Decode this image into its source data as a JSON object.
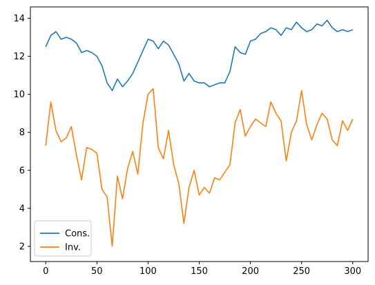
{
  "chart_data": {
    "type": "line",
    "title": "",
    "xlabel": "",
    "ylabel": "",
    "xlim": [
      -15,
      315
    ],
    "ylim": [
      1.2,
      14.6
    ],
    "xticks": [
      0,
      50,
      100,
      150,
      200,
      250,
      300
    ],
    "yticks": [
      2,
      4,
      6,
      8,
      10,
      12,
      14
    ],
    "grid": false,
    "legend_position": "lower-left",
    "series": [
      {
        "name": "Cons.",
        "color": "#1f77b4",
        "x": [
          0,
          5,
          10,
          15,
          20,
          25,
          30,
          35,
          40,
          45,
          50,
          55,
          60,
          65,
          70,
          75,
          80,
          85,
          90,
          95,
          100,
          105,
          110,
          115,
          120,
          125,
          130,
          135,
          140,
          145,
          150,
          155,
          160,
          165,
          170,
          175,
          180,
          185,
          190,
          195,
          200,
          205,
          210,
          215,
          220,
          225,
          230,
          235,
          240,
          245,
          250,
          255,
          260,
          265,
          270,
          275,
          280,
          285,
          290,
          295,
          300
        ],
        "values": [
          12.5,
          13.1,
          13.3,
          12.9,
          13.0,
          12.9,
          12.7,
          12.2,
          12.3,
          12.2,
          12.0,
          11.5,
          10.6,
          10.2,
          10.8,
          10.4,
          10.7,
          11.1,
          11.7,
          12.3,
          12.9,
          12.8,
          12.4,
          12.8,
          12.6,
          12.1,
          11.6,
          10.7,
          11.1,
          10.7,
          10.6,
          10.6,
          10.4,
          10.5,
          10.6,
          10.6,
          11.2,
          12.5,
          12.2,
          12.1,
          12.8,
          12.9,
          13.2,
          13.3,
          13.5,
          13.4,
          13.1,
          13.5,
          13.4,
          13.8,
          13.5,
          13.3,
          13.4,
          13.7,
          13.6,
          13.9,
          13.5,
          13.3,
          13.4,
          13.3,
          13.4
        ]
      },
      {
        "name": "Inv.",
        "color": "#ff7f0e",
        "x": [
          0,
          5,
          10,
          15,
          20,
          25,
          30,
          35,
          40,
          45,
          50,
          55,
          60,
          65,
          70,
          75,
          80,
          85,
          90,
          95,
          100,
          105,
          110,
          115,
          120,
          125,
          130,
          135,
          140,
          145,
          150,
          155,
          160,
          165,
          170,
          175,
          180,
          185,
          190,
          195,
          200,
          205,
          210,
          215,
          220,
          225,
          230,
          235,
          240,
          245,
          250,
          255,
          260,
          265,
          270,
          275,
          280,
          285,
          290,
          295,
          300
        ],
        "values": [
          7.3,
          9.6,
          8.1,
          7.5,
          7.7,
          8.3,
          6.8,
          5.5,
          7.2,
          7.1,
          6.9,
          5.0,
          4.6,
          2.0,
          5.7,
          4.5,
          6.1,
          7.0,
          5.8,
          8.5,
          10.0,
          10.3,
          7.2,
          6.6,
          8.1,
          6.3,
          5.3,
          3.2,
          5.1,
          6.0,
          4.7,
          5.1,
          4.8,
          5.6,
          5.5,
          5.9,
          6.3,
          8.5,
          9.2,
          7.8,
          8.3,
          8.7,
          8.5,
          8.3,
          9.6,
          9.0,
          8.6,
          6.5,
          8.0,
          8.6,
          10.2,
          8.4,
          7.6,
          8.4,
          9.0,
          8.7,
          7.6,
          7.3,
          8.6,
          8.1,
          8.7
        ]
      }
    ]
  }
}
